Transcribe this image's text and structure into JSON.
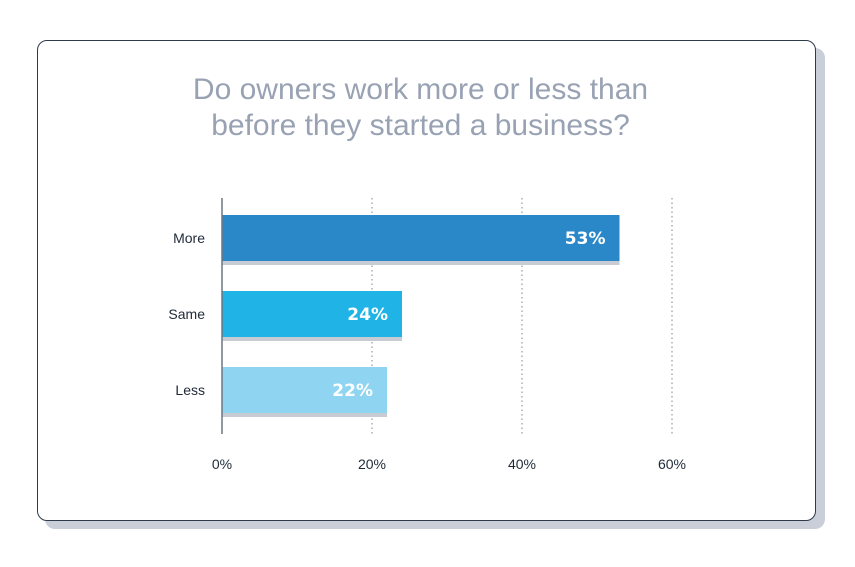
{
  "chart_data": {
    "type": "bar",
    "orientation": "horizontal",
    "title": "Do owners work more or less than before they started a business?",
    "title_lines": [
      "Do owners work more or less than",
      "before they started a business?"
    ],
    "categories": [
      "More",
      "Same",
      "Less"
    ],
    "values": [
      53,
      24,
      22
    ],
    "data_labels": [
      "53%",
      "24%",
      "22%"
    ],
    "colors": [
      "#2a87c8",
      "#1fb3e6",
      "#8fd5f1"
    ],
    "xlim": [
      0,
      60
    ],
    "x_ticks": [
      0,
      20,
      40,
      60
    ],
    "x_tick_labels": [
      "0%",
      "20%",
      "40%",
      "60%"
    ],
    "grid": "vertical dotted",
    "xlabel": "",
    "ylabel": ""
  }
}
